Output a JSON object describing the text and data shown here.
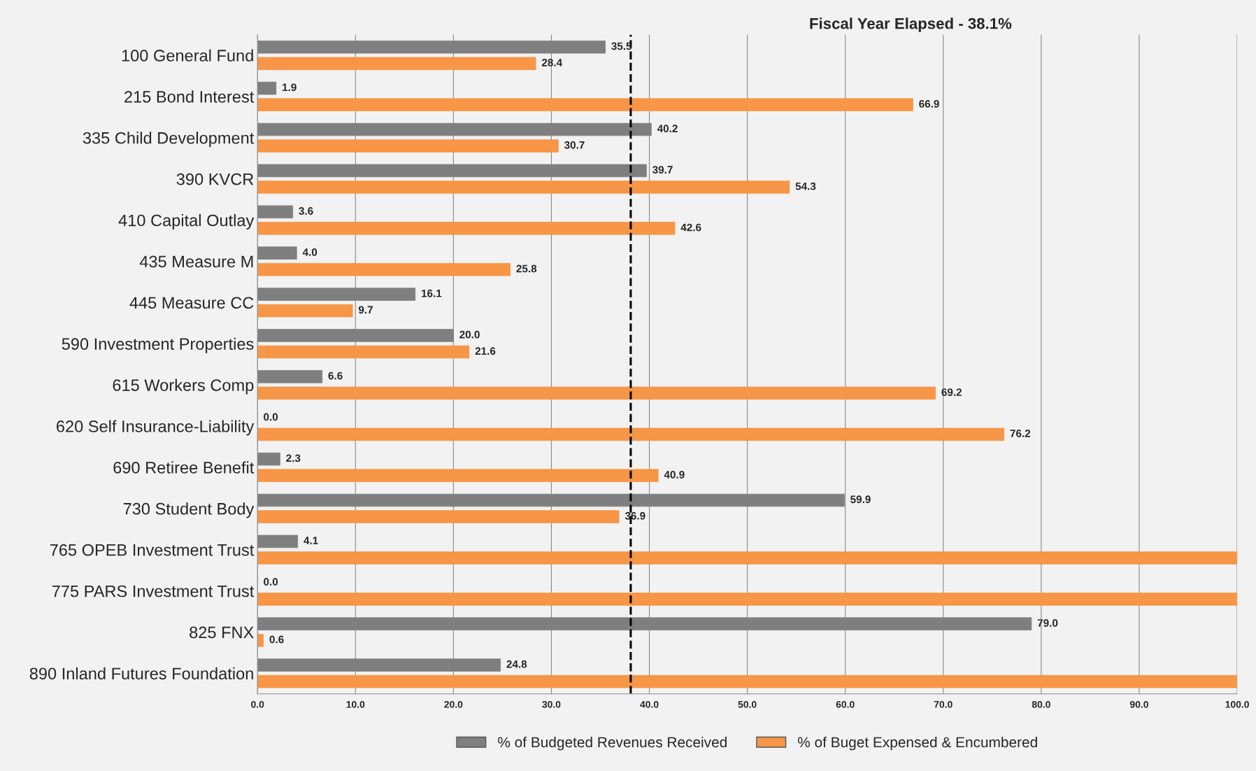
{
  "chart_data": {
    "type": "bar",
    "orientation": "horizontal",
    "title": "Fiscal Year Elapsed - 38.1%",
    "categories": [
      "100 General Fund",
      "215 Bond Interest",
      "335 Child Development",
      "390 KVCR",
      "410 Capital Outlay",
      "435 Measure M",
      "445 Measure CC",
      "590 Investment Properties",
      "615 Workers Comp",
      "620 Self Insurance-Liability",
      "690 Retiree Benefit",
      "730 Student Body",
      "765 OPEB Investment Trust",
      "775 PARS Investment Trust",
      "825 FNX",
      "890 Inland Futures Foundation"
    ],
    "series": [
      {
        "name": "% of Budgeted Revenues Received",
        "color": "#7f7f7f",
        "values": [
          35.5,
          1.9,
          40.2,
          39.7,
          3.6,
          4.0,
          16.1,
          20.0,
          6.6,
          0.0,
          2.3,
          59.9,
          4.1,
          0.0,
          79.0,
          24.8
        ],
        "value_labels": [
          "35.5",
          "1.9",
          "40.2",
          "39.7",
          "3.6",
          "4.0",
          "16.1",
          "20.0",
          "6.6",
          "0.0",
          "2.3",
          "59.9",
          "4.1",
          "0.0",
          "79.0",
          "24.8"
        ]
      },
      {
        "name": "% of Buget Expensed & Encumbered",
        "color": "#f79646",
        "values": [
          28.4,
          66.9,
          30.7,
          54.3,
          42.6,
          25.8,
          9.7,
          21.6,
          69.2,
          76.2,
          40.9,
          36.9,
          100,
          100,
          0.6,
          100
        ],
        "value_labels": [
          "28.4",
          "66.9",
          "30.7",
          "54.3",
          "42.6",
          "25.8",
          "9.7",
          "21.6",
          "69.2",
          "76.2",
          "40.9",
          "36.9",
          null,
          null,
          "0.6",
          null
        ]
      }
    ],
    "xlim": [
      0,
      100
    ],
    "xticks": [
      {
        "value": 0,
        "label": "0.0"
      },
      {
        "value": 10,
        "label": "10.0"
      },
      {
        "value": 20,
        "label": "20.0"
      },
      {
        "value": 30,
        "label": "30.0"
      },
      {
        "value": 40,
        "label": "40.0"
      },
      {
        "value": 50,
        "label": "50.0"
      },
      {
        "value": 60,
        "label": "60.0"
      },
      {
        "value": 70,
        "label": "70.0"
      },
      {
        "value": 80,
        "label": "80.0"
      },
      {
        "value": 90,
        "label": "90.0"
      },
      {
        "value": 100,
        "label": "100.0"
      }
    ],
    "ref_lines": [
      {
        "axis": "x",
        "value": 38.1,
        "color": "#000000",
        "line_style": "dashed"
      }
    ],
    "grid": "x",
    "legend": "bottom"
  }
}
